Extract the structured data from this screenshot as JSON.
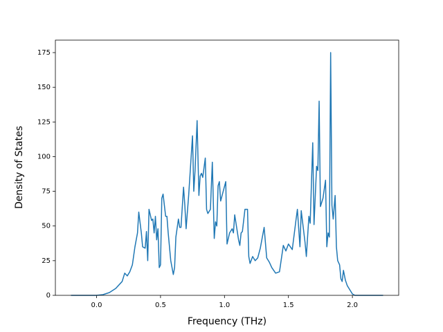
{
  "chart_data": {
    "type": "line",
    "x_label": "Frequency (THz)",
    "y_label": "Density of States",
    "x": [
      -0.2,
      0.0,
      0.05,
      0.1,
      0.15,
      0.2,
      0.22,
      0.24,
      0.26,
      0.28,
      0.3,
      0.32,
      0.33,
      0.35,
      0.36,
      0.38,
      0.39,
      0.4,
      0.41,
      0.43,
      0.44,
      0.45,
      0.46,
      0.47,
      0.48,
      0.49,
      0.5,
      0.51,
      0.52,
      0.54,
      0.55,
      0.56,
      0.58,
      0.6,
      0.61,
      0.62,
      0.64,
      0.65,
      0.66,
      0.68,
      0.69,
      0.7,
      0.72,
      0.75,
      0.76,
      0.77,
      0.786,
      0.8,
      0.81,
      0.82,
      0.83,
      0.85,
      0.86,
      0.87,
      0.89,
      0.905,
      0.92,
      0.93,
      0.94,
      0.95,
      0.96,
      0.97,
      1.01,
      1.02,
      1.04,
      1.06,
      1.07,
      1.08,
      1.11,
      1.12,
      1.13,
      1.14,
      1.16,
      1.18,
      1.19,
      1.2,
      1.22,
      1.24,
      1.26,
      1.28,
      1.31,
      1.33,
      1.35,
      1.37,
      1.4,
      1.43,
      1.46,
      1.48,
      1.5,
      1.53,
      1.56,
      1.57,
      1.59,
      1.6,
      1.63,
      1.64,
      1.66,
      1.67,
      1.69,
      1.7,
      1.72,
      1.73,
      1.74,
      1.75,
      1.77,
      1.79,
      1.8,
      1.81,
      1.82,
      1.83,
      1.84,
      1.85,
      1.865,
      1.875,
      1.885,
      1.9,
      1.91,
      1.92,
      1.93,
      1.945,
      1.96,
      1.98,
      2.0,
      2.02,
      2.04,
      2.24
    ],
    "series": [
      {
        "color": "#1f77b4",
        "values": [
          0,
          0,
          0.5,
          2,
          5,
          10,
          16,
          14,
          17,
          22,
          35,
          45,
          60,
          45,
          35,
          34,
          46,
          25,
          62,
          54,
          55,
          45,
          57,
          40,
          48,
          20,
          22,
          70,
          73,
          57,
          57,
          45,
          25,
          15,
          20,
          42,
          55,
          49,
          49,
          78,
          65,
          48,
          72,
          115,
          75,
          90,
          126,
          72,
          86,
          88,
          85,
          99,
          62,
          59,
          62,
          96,
          41,
          53,
          50,
          79,
          82,
          68,
          82,
          37,
          45,
          48,
          45,
          58,
          40,
          36,
          45,
          46,
          62,
          62,
          28,
          23,
          28,
          25,
          27,
          34,
          49,
          27,
          24,
          20,
          16,
          17,
          36,
          32,
          37,
          33,
          55,
          62,
          35,
          61,
          38,
          28,
          57,
          52,
          110,
          51,
          93,
          90,
          140,
          64,
          70,
          83,
          35,
          45,
          42,
          175,
          65,
          55,
          72,
          35,
          25,
          22,
          12,
          10,
          18,
          11,
          7,
          4,
          1,
          0,
          0,
          0
        ]
      }
    ],
    "xlim": [
      -0.322,
      2.362
    ],
    "ylim": [
      0,
      184
    ],
    "xticks": [
      {
        "value": 0,
        "label": "0.0"
      },
      {
        "value": 0.5,
        "label": "0.5"
      },
      {
        "value": 1,
        "label": "1.0"
      },
      {
        "value": 1.5,
        "label": "1.5"
      },
      {
        "value": 2,
        "label": "2.0"
      }
    ],
    "yticks": [
      0,
      25,
      50,
      75,
      100,
      125,
      150,
      175
    ]
  }
}
